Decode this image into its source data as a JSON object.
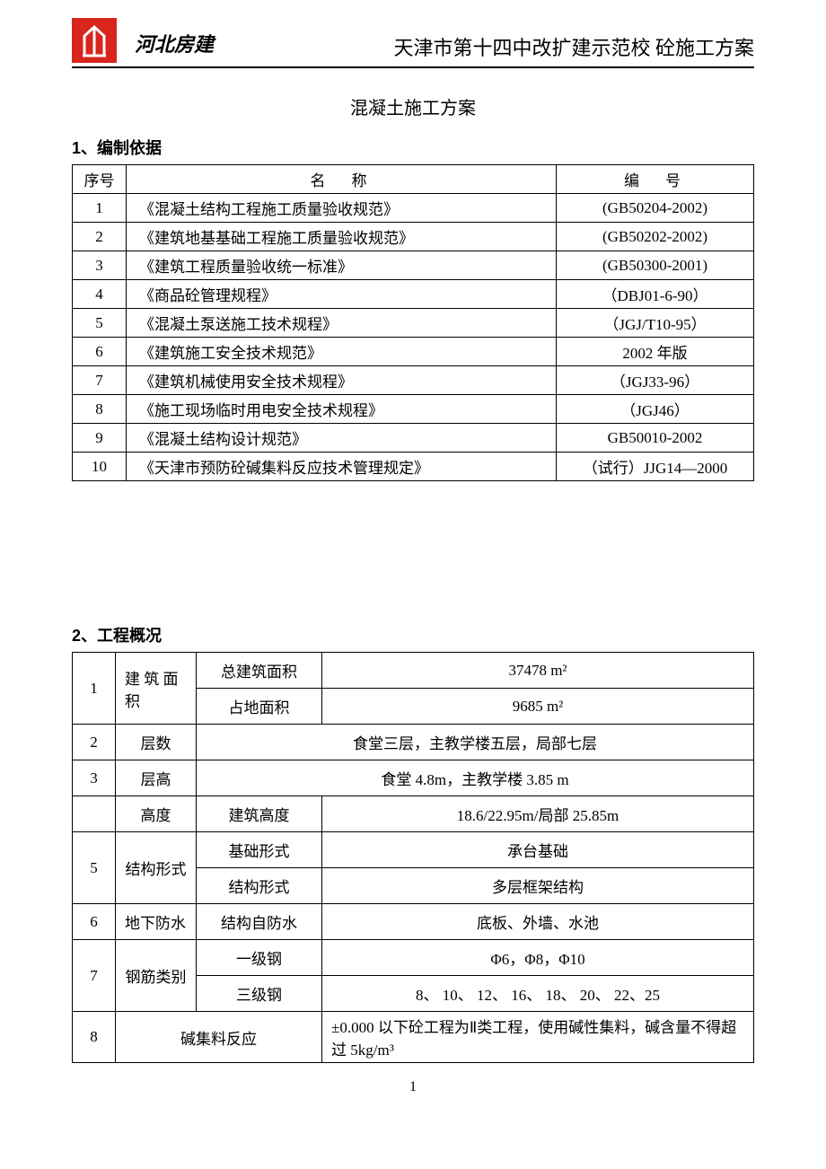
{
  "header": {
    "brand": "河北房建",
    "title": "天津市第十四中改扩建示范校  砼施工方案"
  },
  "doc_title": "混凝土施工方案",
  "section1": {
    "heading": "1、编制依据",
    "columns": {
      "idx": "序号",
      "name": "名　称",
      "code": "编　号"
    },
    "rows": [
      {
        "idx": "1",
        "name": "《混凝土结构工程施工质量验收规范》",
        "code": "(GB50204-2002)"
      },
      {
        "idx": "2",
        "name": "《建筑地基基础工程施工质量验收规范》",
        "code": "(GB50202-2002)"
      },
      {
        "idx": "3",
        "name": "《建筑工程质量验收统一标准》",
        "code": "(GB50300-2001)"
      },
      {
        "idx": "4",
        "name": "《商品砼管理规程》",
        "code": "（DBJ01-6-90）"
      },
      {
        "idx": "5",
        "name": "《混凝土泵送施工技术规程》",
        "code": "（JGJ/T10-95）"
      },
      {
        "idx": "6",
        "name": "《建筑施工安全技术规范》",
        "code": "2002 年版"
      },
      {
        "idx": "7",
        "name": "《建筑机械使用安全技术规程》",
        "code": "（JGJ33-96）"
      },
      {
        "idx": "8",
        "name": "《施工现场临时用电安全技术规程》",
        "code": "（JGJ46）"
      },
      {
        "idx": "9",
        "name": "《混凝土结构设计规范》",
        "code": "GB50010-2002"
      },
      {
        "idx": "10",
        "name": "《天津市预防砼碱集料反应技术管理规定》",
        "code": "（试行）JJG14—2000"
      }
    ]
  },
  "section2": {
    "heading": "2、工程概况",
    "rows": {
      "r1_idx": "1",
      "r1_lab": "建 筑 面 积",
      "r1a_sub": "总建筑面积",
      "r1a_val": "37478 m²",
      "r1b_sub": "占地面积",
      "r1b_val": "9685 m²",
      "r2_idx": "2",
      "r2_lab": "层数",
      "r2_val": "食堂三层，主教学楼五层，局部七层",
      "r3_idx": "3",
      "r3_lab": "层高",
      "r3_val": "食堂 4.8m，主教学楼 3.85 m",
      "r4_lab": "高度",
      "r4_sub": "建筑高度",
      "r4_val": "18.6/22.95m/局部 25.85m",
      "r5_idx": "5",
      "r5_lab": "结构形式",
      "r5a_sub": "基础形式",
      "r5a_val": "承台基础",
      "r5b_sub": "结构形式",
      "r5b_val": "多层框架结构",
      "r6_idx": "6",
      "r6_lab": "地下防水",
      "r6_sub": "结构自防水",
      "r6_val": "底板、外墙、水池",
      "r7_idx": "7",
      "r7_lab": "钢筋类别",
      "r7a_sub": "一级钢",
      "r7a_val": "Φ6，Φ8，Φ10",
      "r7b_sub": "三级钢",
      "r7b_val": "8、 10、 12、 16、 18、 20、 22、25",
      "r8_idx": "8",
      "r8_lab": "碱集料反应",
      "r8_val": "±0.000 以下砼工程为Ⅱ类工程，使用碱性集料，碱含量不得超过 5kg/m³"
    }
  },
  "page_number": "1"
}
